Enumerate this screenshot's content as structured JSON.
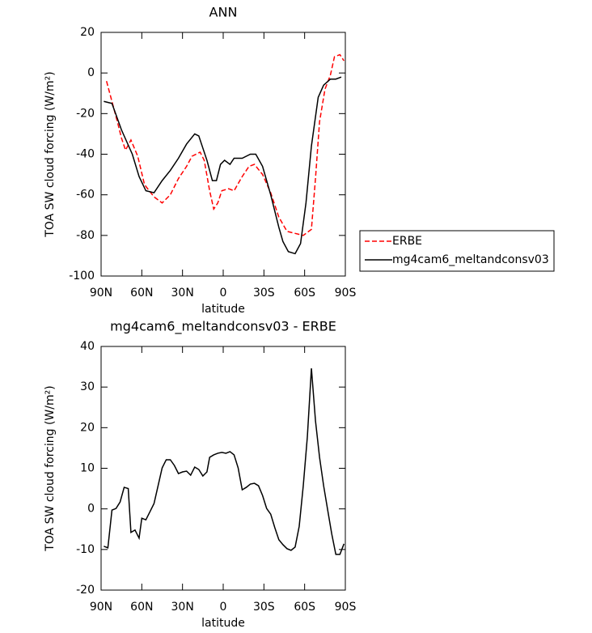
{
  "chart_data": [
    {
      "type": "line",
      "title": "ANN",
      "xlabel": "latitude",
      "ylabel": "TOA SW cloud forcing (W/m²)",
      "xlim": [
        90,
        -90
      ],
      "xticks": [
        {
          "value": 90,
          "label": "90N"
        },
        {
          "value": 60,
          "label": "60N"
        },
        {
          "value": 30,
          "label": "30N"
        },
        0,
        {
          "value": -30,
          "label": "30S"
        },
        {
          "value": -60,
          "label": "60S"
        },
        {
          "value": -90,
          "label": "90S"
        }
      ],
      "ylim": [
        -100,
        20
      ],
      "yticks": [
        20,
        0,
        -20,
        -40,
        -60,
        -80,
        -100
      ],
      "legend": "right",
      "series": [
        {
          "name": "ERBE",
          "color": "#ff0000",
          "dashed": true,
          "x": [
            86,
            82,
            78,
            75,
            72,
            68,
            63,
            58,
            51,
            45,
            39,
            33,
            27,
            23,
            17,
            14,
            10,
            7,
            4,
            1,
            -4,
            -8,
            -14,
            -19,
            -23,
            -29,
            -35,
            -41,
            -47,
            -53,
            -59,
            -65,
            -68,
            -71,
            -75,
            -79,
            -82,
            -86,
            -89
          ],
          "values": [
            -4,
            -14,
            -24,
            -32,
            -38,
            -33,
            -41,
            -55,
            -61,
            -64,
            -60,
            -52,
            -46,
            -41,
            -39,
            -43,
            -58,
            -67,
            -64,
            -58,
            -57,
            -58,
            -51,
            -46,
            -45,
            -50,
            -59,
            -71,
            -78,
            -79,
            -80,
            -77,
            -52,
            -24,
            -8,
            -1,
            8,
            9,
            6
          ]
        },
        {
          "name": "mg4cam6_meltandconsv03",
          "color": "#000000",
          "dashed": false,
          "x": [
            88,
            82,
            75,
            67,
            62,
            57,
            51,
            45,
            39,
            33,
            27,
            21,
            18,
            12,
            8,
            5,
            2,
            -1,
            -5,
            -8,
            -14,
            -20,
            -24,
            -29,
            -35,
            -41,
            -44,
            -48,
            -53,
            -57,
            -61,
            -65,
            -70,
            -74,
            -79,
            -83,
            -87
          ],
          "values": [
            -14,
            -15,
            -28,
            -40,
            -51,
            -58,
            -59,
            -53,
            -48,
            -42,
            -35,
            -30,
            -31,
            -43,
            -53,
            -53,
            -45,
            -43,
            -45,
            -42,
            -42,
            -40,
            -40,
            -46,
            -60,
            -76,
            -83,
            -88,
            -89,
            -84,
            -64,
            -36,
            -12,
            -6,
            -3,
            -3,
            -2
          ]
        }
      ]
    },
    {
      "type": "line",
      "title": "mg4cam6_meltandconsv03 - ERBE",
      "xlabel": "latitude",
      "ylabel": "TOA SW cloud forcing (W/m²)",
      "xlim": [
        90,
        -90
      ],
      "xticks": [
        {
          "value": 90,
          "label": "90N"
        },
        {
          "value": 60,
          "label": "60N"
        },
        {
          "value": 30,
          "label": "30N"
        },
        0,
        {
          "value": -30,
          "label": "30S"
        },
        {
          "value": -60,
          "label": "60S"
        },
        {
          "value": -90,
          "label": "90S"
        }
      ],
      "ylim": [
        -20,
        40
      ],
      "yticks": [
        40,
        30,
        20,
        10,
        0,
        -10,
        -20
      ],
      "series": [
        {
          "color": "#000000",
          "dashed": false,
          "x": [
            88,
            85,
            82,
            79,
            76,
            73,
            70,
            68,
            65,
            62,
            60,
            57,
            54,
            51,
            48,
            45,
            42,
            39,
            36,
            33,
            30,
            27,
            24,
            21,
            18,
            15,
            12,
            10,
            7,
            4,
            1,
            -2,
            -5,
            -8,
            -11,
            -14,
            -17,
            -20,
            -23,
            -26,
            -29,
            -32,
            -35,
            -38,
            -41,
            -44,
            -47,
            -50,
            -53,
            -56,
            -59,
            -62,
            -65,
            -68,
            -71,
            -74,
            -77,
            -80,
            -83,
            -86,
            -89
          ],
          "values": [
            -9.2,
            -9.6,
            -0.3,
            0.1,
            1.7,
            5.3,
            5,
            -5.8,
            -5.2,
            -7.2,
            -2.3,
            -2.7,
            -0.7,
            1.3,
            5.7,
            10.1,
            12.1,
            12.1,
            10.7,
            8.7,
            9.1,
            9.3,
            8.3,
            10.3,
            9.7,
            8.1,
            9.1,
            12.7,
            13.3,
            13.7,
            13.9,
            13.7,
            14.1,
            13.3,
            10.1,
            4.7,
            5.3,
            6.1,
            6.3,
            5.7,
            3.3,
            0.1,
            -1.3,
            -4.6,
            -7.6,
            -8.8,
            -9.8,
            -10.2,
            -9.4,
            -4.3,
            5.7,
            17.7,
            34.6,
            21.7,
            12.7,
            5.7,
            -0.3,
            -6.2,
            -11.2,
            -11.2,
            -8.6
          ]
        }
      ]
    }
  ]
}
